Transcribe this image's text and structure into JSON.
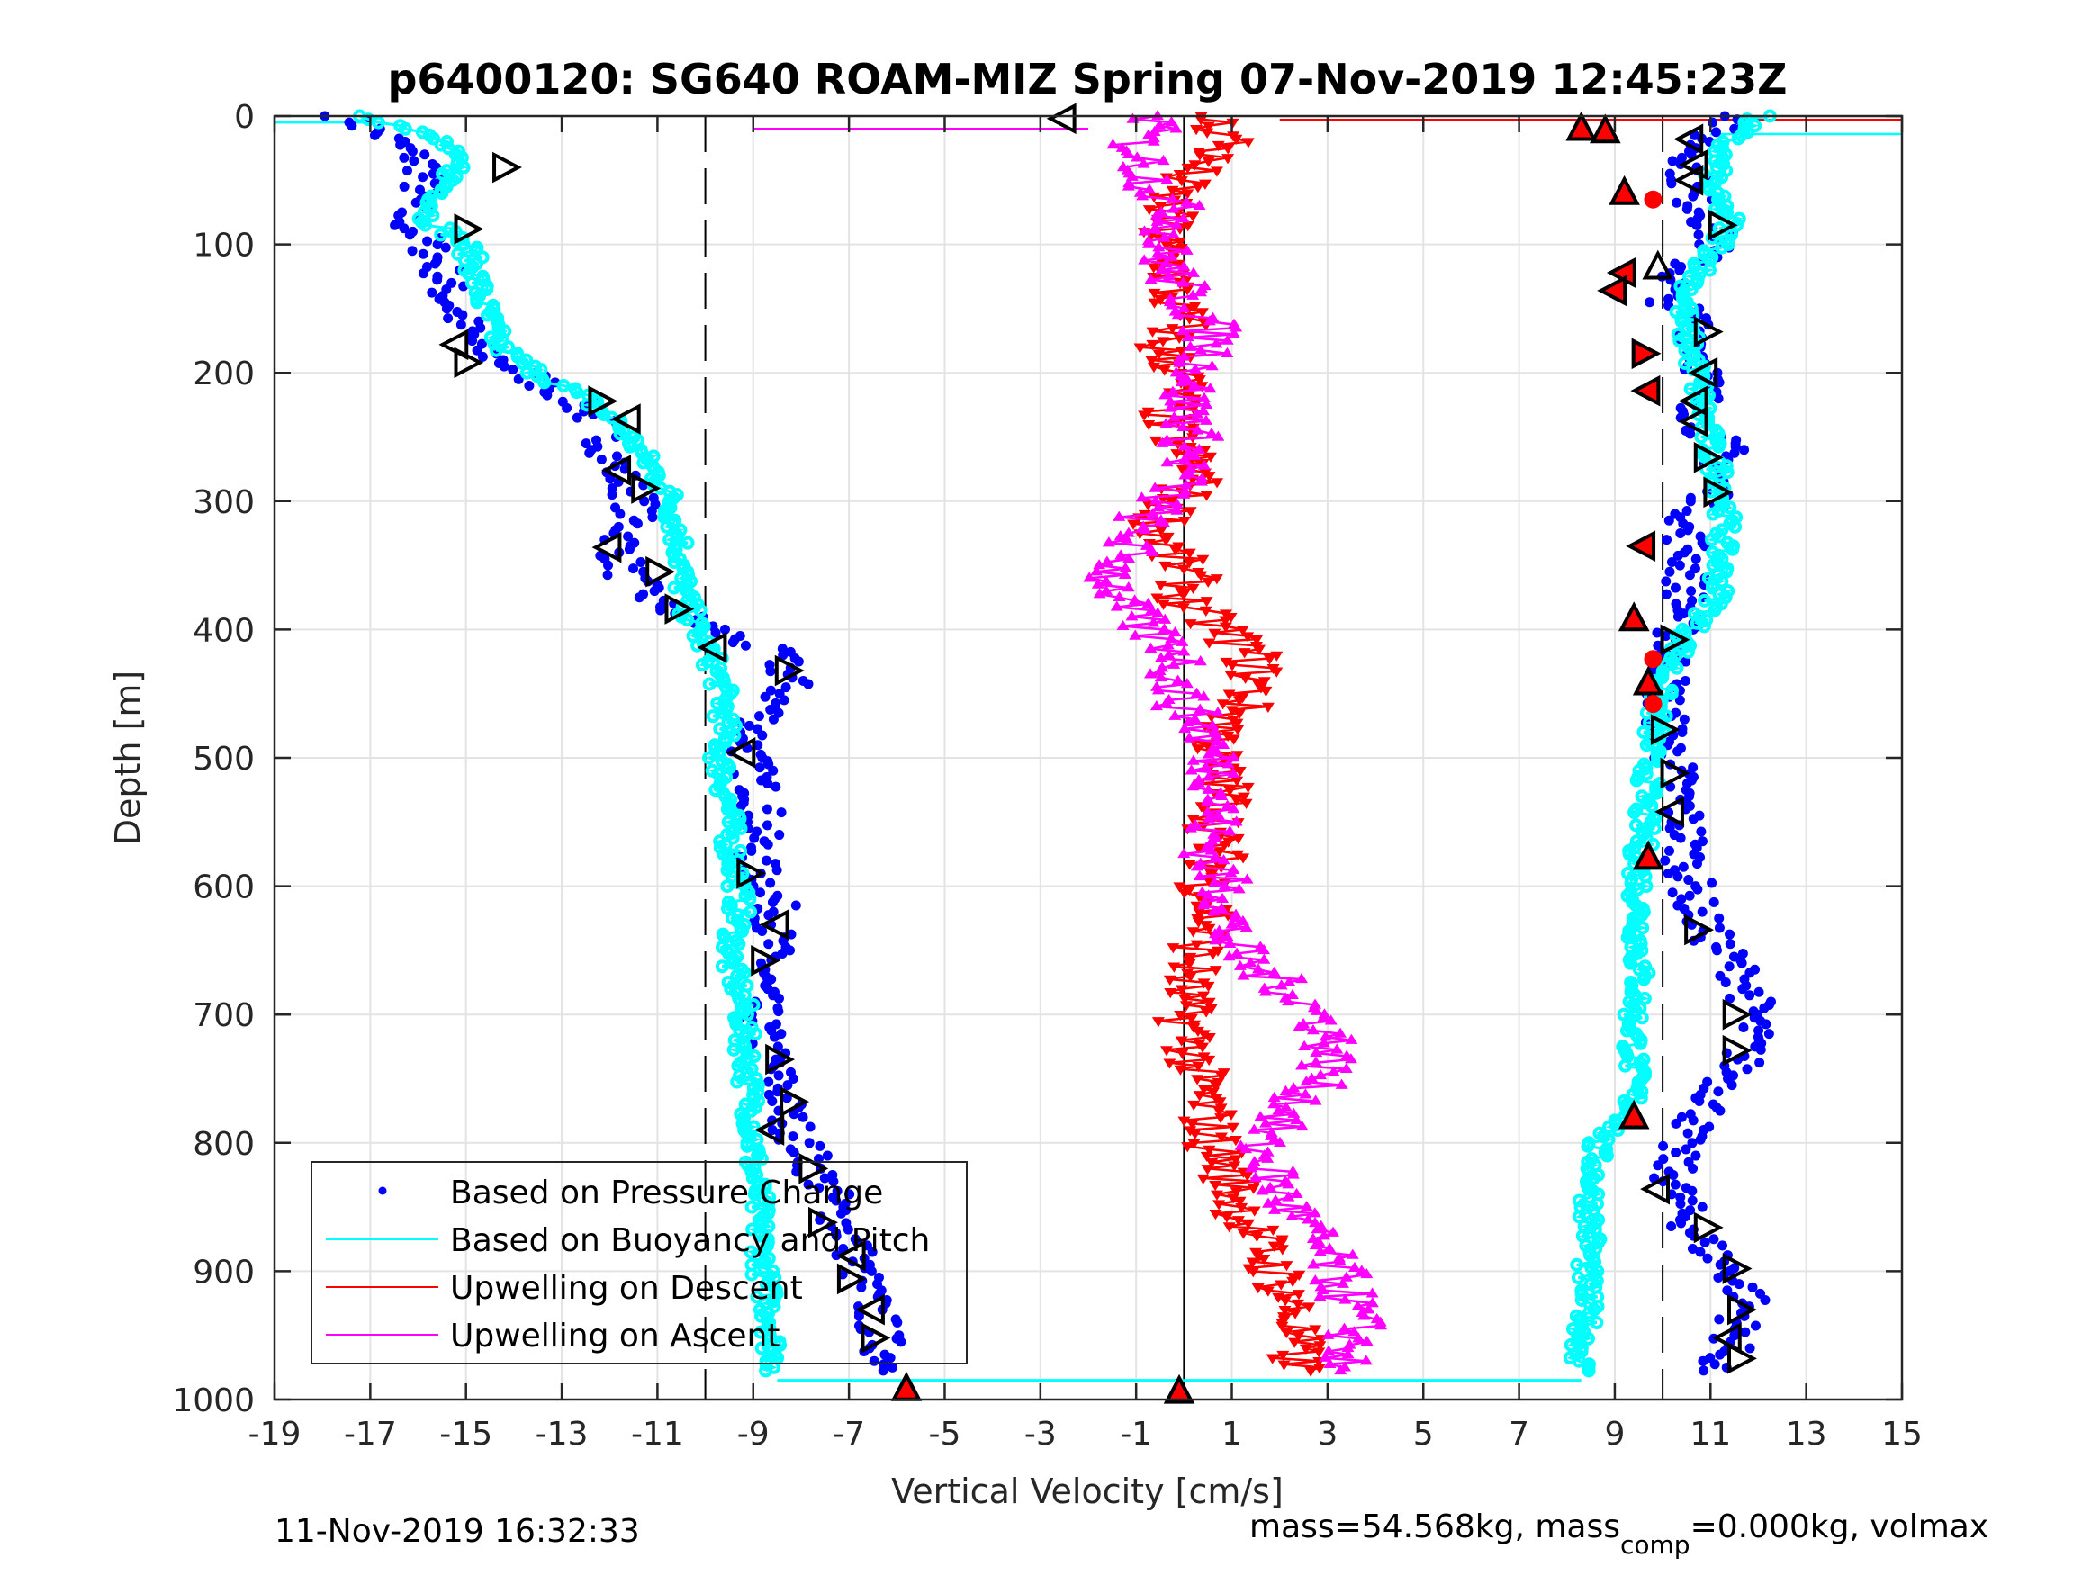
{
  "chart_data": {
    "type": "scatter",
    "title": "p6400120: SG640 ROAM-MIZ Spring 07-Nov-2019 12:45:23Z",
    "xlabel": "Vertical Velocity [cm/s]",
    "ylabel": "Depth [m]",
    "xlim": [
      -19,
      15
    ],
    "ylim": [
      0,
      1000
    ],
    "y_reversed": true,
    "grid": true,
    "xticks": [
      -19,
      -17,
      -15,
      -13,
      -11,
      -9,
      -7,
      -5,
      -3,
      -1,
      1,
      3,
      5,
      7,
      9,
      11,
      13,
      15
    ],
    "yticks": [
      0,
      100,
      200,
      300,
      400,
      500,
      600,
      700,
      800,
      900,
      1000
    ],
    "reference_lines": [
      {
        "name": "zero",
        "x": 0,
        "style": "solid"
      },
      {
        "name": "target-descent",
        "x": -10,
        "style": "dashed"
      },
      {
        "name": "target-ascent",
        "x": 10,
        "style": "dashed"
      }
    ],
    "legend": {
      "placement": "lower-left",
      "entries": [
        {
          "label": "Based on Pressure Change",
          "color": "#0000ff",
          "marker": "dot"
        },
        {
          "label": "Based on Buoyancy and Pitch",
          "color": "#00ffff",
          "marker": "line"
        },
        {
          "label": "Upwelling on Descent",
          "color": "#ff0000",
          "marker": "line"
        },
        {
          "label": "Upwelling on Ascent",
          "color": "#ff00ff",
          "marker": "line"
        }
      ]
    },
    "depth": [
      0,
      20,
      40,
      60,
      80,
      100,
      120,
      140,
      160,
      180,
      200,
      220,
      240,
      260,
      280,
      300,
      320,
      340,
      360,
      380,
      400,
      420,
      440,
      460,
      480,
      500,
      520,
      540,
      560,
      580,
      600,
      620,
      640,
      660,
      680,
      700,
      720,
      740,
      760,
      780,
      800,
      820,
      840,
      860,
      880,
      900,
      920,
      940,
      960,
      980
    ],
    "series": [
      {
        "name": "Based on Pressure Change (descent)",
        "color": "#0000ff",
        "values": [
          -17.5,
          -16.5,
          -15.8,
          -16.0,
          -16.3,
          -15.8,
          -15.5,
          -15.4,
          -15.1,
          -14.8,
          -13.8,
          -12.8,
          -12.2,
          -12.0,
          -11.8,
          -11.4,
          -11.6,
          -11.8,
          -11.6,
          -11.0,
          -9.8,
          -8.5,
          -8.2,
          -8.6,
          -9.0,
          -9.1,
          -8.9,
          -8.8,
          -8.9,
          -9.0,
          -8.7,
          -8.5,
          -8.6,
          -8.7,
          -8.9,
          -8.9,
          -8.8,
          -8.6,
          -8.4,
          -8.3,
          -8.0,
          -7.7,
          -7.4,
          -7.2,
          -6.9,
          -6.8,
          -6.6,
          -6.4,
          -6.3,
          -6.0
        ]
      },
      {
        "name": "Based on Buoyancy and Pitch (descent)",
        "color": "#00ffff",
        "values": [
          -17.0,
          -15.5,
          -15.2,
          -15.5,
          -15.8,
          -15.0,
          -14.8,
          -14.7,
          -14.5,
          -14.3,
          -13.5,
          -12.5,
          -11.8,
          -11.4,
          -11.0,
          -10.7,
          -10.6,
          -10.5,
          -10.5,
          -10.4,
          -10.2,
          -9.9,
          -9.7,
          -9.6,
          -9.6,
          -9.7,
          -9.6,
          -9.5,
          -9.5,
          -9.4,
          -9.3,
          -9.3,
          -9.4,
          -9.5,
          -9.3,
          -9.2,
          -9.2,
          -9.1,
          -9.1,
          -9.0,
          -9.0,
          -9.0,
          -8.9,
          -8.9,
          -8.8,
          -8.8,
          -8.7,
          -8.6,
          -8.6,
          -8.5
        ]
      },
      {
        "name": "Based on Pressure Change (ascent)",
        "color": "#0000ff",
        "values": [
          11.5,
          10.8,
          10.6,
          10.5,
          11.0,
          11.1,
          10.4,
          10.0,
          10.7,
          10.8,
          10.9,
          10.8,
          10.8,
          11.3,
          11.2,
          11.0,
          10.4,
          10.6,
          10.5,
          10.5,
          10.3,
          10.2,
          10.1,
          10.0,
          10.1,
          10.2,
          10.3,
          10.4,
          10.5,
          10.5,
          10.6,
          10.7,
          11.0,
          11.5,
          11.8,
          11.9,
          11.8,
          11.6,
          11.2,
          10.8,
          10.3,
          10.2,
          10.3,
          10.5,
          10.9,
          11.4,
          11.8,
          11.6,
          11.4,
          11.0
        ]
      },
      {
        "name": "Based on Buoyancy and Pitch (ascent)",
        "color": "#00ffff",
        "values": [
          12.0,
          11.3,
          11.1,
          11.0,
          11.4,
          11.2,
          10.8,
          10.5,
          10.4,
          10.6,
          10.7,
          10.8,
          10.9,
          11.0,
          11.2,
          11.3,
          11.3,
          11.2,
          11.2,
          11.1,
          10.6,
          10.3,
          10.0,
          9.9,
          9.8,
          9.7,
          9.7,
          9.6,
          9.6,
          9.5,
          9.5,
          9.5,
          9.5,
          9.5,
          9.5,
          9.4,
          9.4,
          9.4,
          9.4,
          9.3,
          8.6,
          8.6,
          8.5,
          8.5,
          8.5,
          8.4,
          8.4,
          8.4,
          8.3,
          8.3
        ]
      },
      {
        "name": "Upwelling on Descent",
        "color": "#ff0000",
        "values": [
          0.5,
          1.0,
          0.2,
          -0.3,
          -0.4,
          -0.5,
          -0.2,
          -0.3,
          0.0,
          -0.5,
          0.0,
          -0.2,
          -0.4,
          0.0,
          0.3,
          -0.2,
          -0.5,
          -0.3,
          0.1,
          0.0,
          0.8,
          1.4,
          1.5,
          1.2,
          0.8,
          0.6,
          0.8,
          0.9,
          0.6,
          0.7,
          0.5,
          0.6,
          0.4,
          0.2,
          0.0,
          0.0,
          0.2,
          0.2,
          0.4,
          0.5,
          0.6,
          0.9,
          1.1,
          1.3,
          1.6,
          1.9,
          2.2,
          2.3,
          2.3,
          2.4
        ]
      },
      {
        "name": "Upwelling on Ascent",
        "color": "#ff00ff",
        "values": [
          -0.5,
          -1.0,
          -0.8,
          -0.5,
          0.0,
          -0.5,
          -0.3,
          0.0,
          0.5,
          0.6,
          0.3,
          0.0,
          0.2,
          0.1,
          0.0,
          -0.5,
          -1.0,
          -1.2,
          -1.5,
          -1.3,
          -0.8,
          0.0,
          -0.2,
          0.0,
          0.5,
          0.6,
          0.8,
          0.7,
          0.5,
          0.6,
          0.8,
          1.0,
          0.9,
          1.3,
          2.2,
          2.8,
          3.1,
          3.0,
          2.6,
          2.1,
          1.5,
          1.8,
          2.0,
          2.4,
          2.8,
          3.2,
          3.4,
          3.6,
          3.5,
          3.0
        ]
      }
    ],
    "bottom_connector": {
      "depth": 985,
      "from_x": -8.5,
      "to_x": 8.3,
      "color": "#00ffff"
    },
    "markers": [
      {
        "type": "triangle-left",
        "x": -2.5,
        "depth": 2,
        "fill": "none"
      },
      {
        "type": "triangle-right",
        "x": -14.2,
        "depth": 40,
        "fill": "none"
      },
      {
        "type": "triangle-right",
        "x": -15.0,
        "depth": 88,
        "fill": "none"
      },
      {
        "type": "triangle-left",
        "x": -15.2,
        "depth": 178,
        "fill": "none"
      },
      {
        "type": "triangle-right",
        "x": -15.0,
        "depth": 192,
        "fill": "none"
      },
      {
        "type": "triangle-right",
        "x": -12.2,
        "depth": 222,
        "fill": "none"
      },
      {
        "type": "triangle-left",
        "x": -11.6,
        "depth": 236,
        "fill": "none"
      },
      {
        "type": "triangle-left",
        "x": -11.8,
        "depth": 276,
        "fill": "none"
      },
      {
        "type": "triangle-right",
        "x": -11.3,
        "depth": 290,
        "fill": "none"
      },
      {
        "type": "triangle-left",
        "x": -12.0,
        "depth": 336,
        "fill": "none"
      },
      {
        "type": "triangle-right",
        "x": -11.0,
        "depth": 355,
        "fill": "none"
      },
      {
        "type": "triangle-right",
        "x": -10.6,
        "depth": 384,
        "fill": "none"
      },
      {
        "type": "triangle-left",
        "x": -9.8,
        "depth": 414,
        "fill": "none"
      },
      {
        "type": "triangle-right",
        "x": -8.3,
        "depth": 432,
        "fill": "none"
      },
      {
        "type": "triangle-left",
        "x": -9.2,
        "depth": 496,
        "fill": "none"
      },
      {
        "type": "triangle-right",
        "x": -9.1,
        "depth": 590,
        "fill": "none"
      },
      {
        "type": "triangle-left",
        "x": -8.5,
        "depth": 630,
        "fill": "none"
      },
      {
        "type": "triangle-right",
        "x": -8.8,
        "depth": 658,
        "fill": "none"
      },
      {
        "type": "triangle-right",
        "x": -8.5,
        "depth": 735,
        "fill": "none"
      },
      {
        "type": "triangle-right",
        "x": -8.2,
        "depth": 768,
        "fill": "none"
      },
      {
        "type": "triangle-left",
        "x": -8.6,
        "depth": 790,
        "fill": "none"
      },
      {
        "type": "triangle-right",
        "x": -7.8,
        "depth": 820,
        "fill": "none"
      },
      {
        "type": "triangle-right",
        "x": -7.6,
        "depth": 862,
        "fill": "none"
      },
      {
        "type": "triangle-left",
        "x": -6.9,
        "depth": 888,
        "fill": "none"
      },
      {
        "type": "triangle-right",
        "x": -7.0,
        "depth": 906,
        "fill": "none"
      },
      {
        "type": "triangle-left",
        "x": -6.5,
        "depth": 930,
        "fill": "none"
      },
      {
        "type": "triangle-right",
        "x": -6.5,
        "depth": 952,
        "fill": "none"
      },
      {
        "type": "triangle-up",
        "x": -5.8,
        "depth": 992,
        "fill": "#ff0000"
      },
      {
        "type": "triangle-up",
        "x": -0.1,
        "depth": 994,
        "fill": "#ff0000"
      },
      {
        "type": "triangle-up",
        "x": 8.3,
        "depth": 10,
        "fill": "#ff0000"
      },
      {
        "type": "triangle-up",
        "x": 8.8,
        "depth": 12,
        "fill": "#ff0000"
      },
      {
        "type": "triangle-left",
        "x": 10.6,
        "depth": 18,
        "fill": "none"
      },
      {
        "type": "triangle-left",
        "x": 10.7,
        "depth": 38,
        "fill": "none"
      },
      {
        "type": "triangle-left",
        "x": 10.6,
        "depth": 50,
        "fill": "none"
      },
      {
        "type": "triangle-up",
        "x": 9.2,
        "depth": 60,
        "fill": "#ff0000"
      },
      {
        "type": "circle",
        "x": 9.8,
        "depth": 65,
        "fill": "#ff0000"
      },
      {
        "type": "triangle-right",
        "x": 11.2,
        "depth": 85,
        "fill": "none"
      },
      {
        "type": "triangle-up",
        "x": 9.9,
        "depth": 118,
        "fill": "none"
      },
      {
        "type": "triangle-left",
        "x": 9.2,
        "depth": 122,
        "fill": "#ff0000"
      },
      {
        "type": "triangle-left",
        "x": 9.0,
        "depth": 136,
        "fill": "#ff0000"
      },
      {
        "type": "triangle-right",
        "x": 10.9,
        "depth": 168,
        "fill": "none"
      },
      {
        "type": "triangle-right",
        "x": 9.6,
        "depth": 185,
        "fill": "#ff0000"
      },
      {
        "type": "triangle-left",
        "x": 10.9,
        "depth": 200,
        "fill": "none"
      },
      {
        "type": "triangle-left",
        "x": 9.7,
        "depth": 214,
        "fill": "#ff0000"
      },
      {
        "type": "triangle-left",
        "x": 10.7,
        "depth": 222,
        "fill": "none"
      },
      {
        "type": "triangle-left",
        "x": 10.7,
        "depth": 238,
        "fill": "none"
      },
      {
        "type": "triangle-right",
        "x": 10.9,
        "depth": 266,
        "fill": "none"
      },
      {
        "type": "triangle-right",
        "x": 11.1,
        "depth": 293,
        "fill": "none"
      },
      {
        "type": "triangle-left",
        "x": 9.6,
        "depth": 335,
        "fill": "#ff0000"
      },
      {
        "type": "triangle-up",
        "x": 9.4,
        "depth": 392,
        "fill": "#ff0000"
      },
      {
        "type": "triangle-right",
        "x": 10.2,
        "depth": 408,
        "fill": "none"
      },
      {
        "type": "circle",
        "x": 9.8,
        "depth": 423,
        "fill": "#ff0000"
      },
      {
        "type": "triangle-up",
        "x": 9.7,
        "depth": 442,
        "fill": "#ff0000"
      },
      {
        "type": "circle",
        "x": 9.8,
        "depth": 458,
        "fill": "#ff0000"
      },
      {
        "type": "triangle-right",
        "x": 10.0,
        "depth": 478,
        "fill": "none"
      },
      {
        "type": "triangle-right",
        "x": 10.2,
        "depth": 512,
        "fill": "none"
      },
      {
        "type": "triangle-left",
        "x": 10.2,
        "depth": 542,
        "fill": "none"
      },
      {
        "type": "triangle-up",
        "x": 9.7,
        "depth": 578,
        "fill": "#ff0000"
      },
      {
        "type": "triangle-right",
        "x": 10.7,
        "depth": 634,
        "fill": "none"
      },
      {
        "type": "triangle-right",
        "x": 11.5,
        "depth": 700,
        "fill": "none"
      },
      {
        "type": "triangle-right",
        "x": 11.5,
        "depth": 728,
        "fill": "none"
      },
      {
        "type": "triangle-up",
        "x": 9.4,
        "depth": 780,
        "fill": "#ff0000"
      },
      {
        "type": "triangle-left",
        "x": 9.9,
        "depth": 836,
        "fill": "none"
      },
      {
        "type": "triangle-right",
        "x": 10.9,
        "depth": 866,
        "fill": "none"
      },
      {
        "type": "triangle-right",
        "x": 11.5,
        "depth": 898,
        "fill": "none"
      },
      {
        "type": "triangle-right",
        "x": 11.6,
        "depth": 930,
        "fill": "none"
      },
      {
        "type": "triangle-left",
        "x": 11.4,
        "depth": 952,
        "fill": "none"
      },
      {
        "type": "triangle-right",
        "x": 11.6,
        "depth": 968,
        "fill": "none"
      }
    ],
    "surface_lines": [
      {
        "color": "#ff0000",
        "depth": 3,
        "from_x": 2.0,
        "to_x": 15.0
      },
      {
        "color": "#00ffff",
        "depth": 5,
        "from_x": -19.0,
        "to_x": -17.0
      },
      {
        "color": "#ff00ff",
        "depth": 10,
        "from_x": -9.0,
        "to_x": -2.0
      },
      {
        "color": "#00ffff",
        "depth": 14,
        "from_x": 11.0,
        "to_x": 15.0
      }
    ]
  },
  "footer": {
    "timestamp": "11-Nov-2019 16:32:33",
    "mass_text_a": "mass=54.568kg, mass",
    "mass_sub": "comp",
    "mass_text_b": "=0.000kg, volmax"
  }
}
